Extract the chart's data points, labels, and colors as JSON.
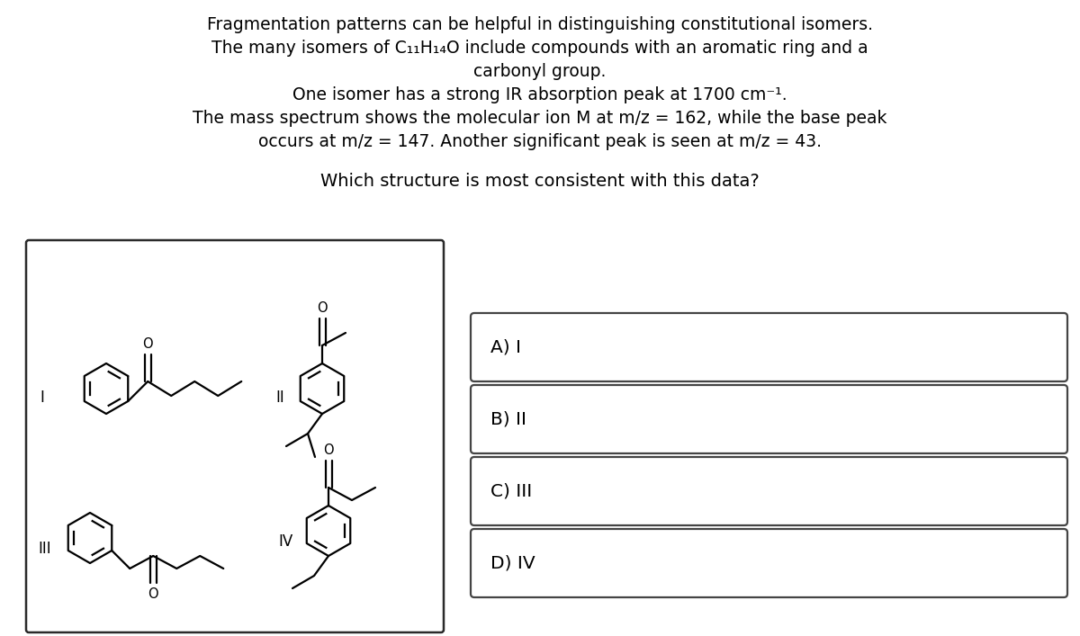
{
  "bg_color": "#ffffff",
  "text_color": "#000000",
  "para1": "Fragmentation patterns can be helpful in distinguishing constitutional isomers.",
  "para2": "The many isomers of C₁₁H₁₄O include compounds with an aromatic ring and a",
  "para2b": "carbonyl group.",
  "para3": "One isomer has a strong IR absorption peak at 1700 cm⁻¹.",
  "para4": "The mass spectrum shows the molecular ion M at m/z = 162, while the base peak",
  "para4b": "occurs at m/z = 147. Another significant peak is seen at m/z = 43.",
  "question": "Which structure is most consistent with this data?",
  "answers": [
    "A) I",
    "B) II",
    "C) III",
    "D) IV"
  ],
  "font_size_para": 13.5,
  "font_size_question": 14.0,
  "font_size_answer": 14.5,
  "font_size_label": 12.0,
  "font_size_O": 10.5
}
